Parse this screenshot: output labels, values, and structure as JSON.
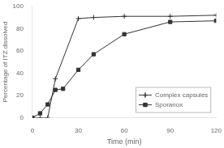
{
  "chart_data": {
    "type": "line",
    "x_label": "Time (min)",
    "y_label": "Percentage of ITZ dissolved",
    "series": [
      {
        "name": "Complex capsules",
        "color": "#333333",
        "marker": "plus",
        "x": [
          0,
          5,
          10,
          15,
          30,
          40,
          60,
          90,
          120
        ],
        "values": [
          0,
          0,
          0,
          35,
          89,
          90,
          91,
          91,
          92
        ]
      },
      {
        "name": "Sporanox",
        "color": "#333333",
        "marker": "square",
        "x": [
          0,
          5,
          10,
          15,
          20,
          30,
          40,
          60,
          90,
          120
        ],
        "values": [
          0,
          4,
          12,
          25,
          26,
          43,
          57,
          75,
          86,
          87
        ]
      }
    ],
    "xlim": [
      0,
      120
    ],
    "ylim": [
      0,
      100
    ],
    "xticks": [
      0,
      30,
      60,
      90,
      120
    ],
    "yticks": [
      0,
      20,
      40,
      60,
      80,
      100
    ],
    "grid": false,
    "legend": "lower right"
  }
}
